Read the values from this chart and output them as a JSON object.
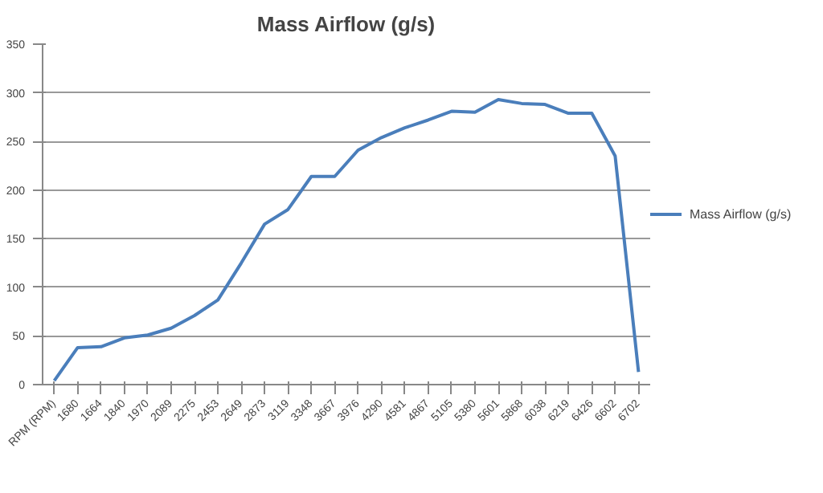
{
  "chart_data": {
    "type": "line",
    "title": "Mass Airflow (g/s)",
    "categories": [
      "RPM (RPM)",
      "1680",
      "1664",
      "1840",
      "1970",
      "2089",
      "2275",
      "2453",
      "2649",
      "2873",
      "3119",
      "3348",
      "3667",
      "3976",
      "4290",
      "4581",
      "4867",
      "5105",
      "5380",
      "5601",
      "5868",
      "6038",
      "6219",
      "6426",
      "6602",
      "6702"
    ],
    "series": [
      {
        "name": "Mass Airflow (g/s)",
        "color": "#4a7ebb",
        "values": [
          4,
          38,
          39,
          48,
          51,
          58,
          71,
          87,
          125,
          165,
          180,
          214,
          214,
          241,
          254,
          264,
          272,
          281,
          280,
          293,
          289,
          288,
          279,
          279,
          235,
          13
        ]
      }
    ],
    "ylim": [
      0,
      350
    ],
    "yticks": [
      0,
      50,
      100,
      150,
      200,
      250,
      300,
      350
    ],
    "grid": "y",
    "legend": "right",
    "marker": "none",
    "line_style": "solid"
  }
}
